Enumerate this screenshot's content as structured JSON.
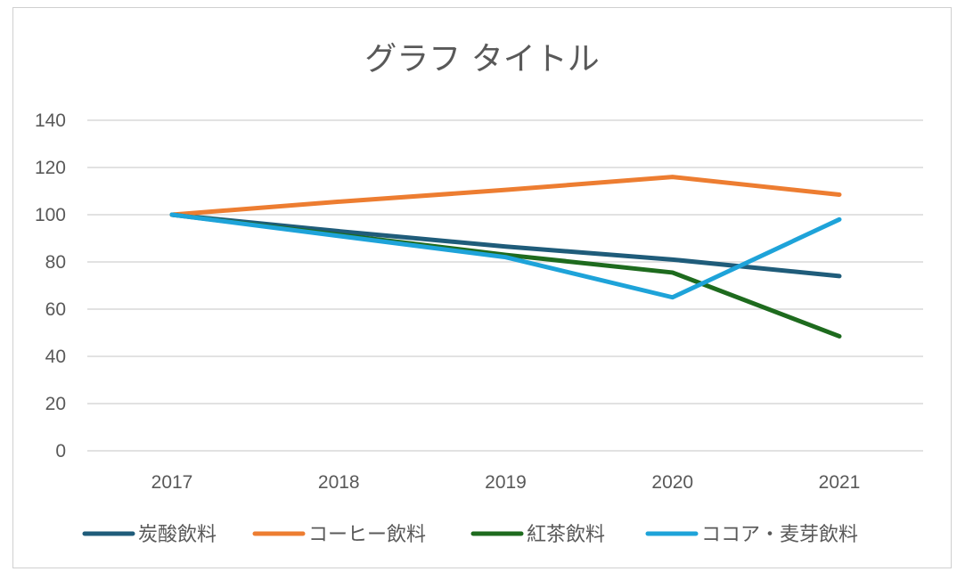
{
  "chart_data": {
    "type": "line",
    "title": "グラフ タイトル",
    "categories": [
      "2017",
      "2018",
      "2019",
      "2020",
      "2021"
    ],
    "ylim": [
      0,
      140
    ],
    "yticks": [
      0,
      20,
      40,
      60,
      80,
      100,
      120,
      140
    ],
    "grid": true,
    "legend": "bottom",
    "series": [
      {
        "name": "炭酸飲料",
        "color": "#1f5c7a",
        "values": [
          100,
          93,
          86.5,
          81,
          74
        ]
      },
      {
        "name": "コーヒー飲料",
        "color": "#ed7d31",
        "values": [
          100,
          105.5,
          110.5,
          116,
          108.5
        ]
      },
      {
        "name": "紅茶飲料",
        "color": "#1e6b1e",
        "values": [
          100,
          91.5,
          83,
          75.5,
          48.5
        ]
      },
      {
        "name": "ココア・麦芽飲料",
        "color": "#1ea3d9",
        "values": [
          100,
          91,
          82,
          65,
          98
        ]
      }
    ]
  }
}
